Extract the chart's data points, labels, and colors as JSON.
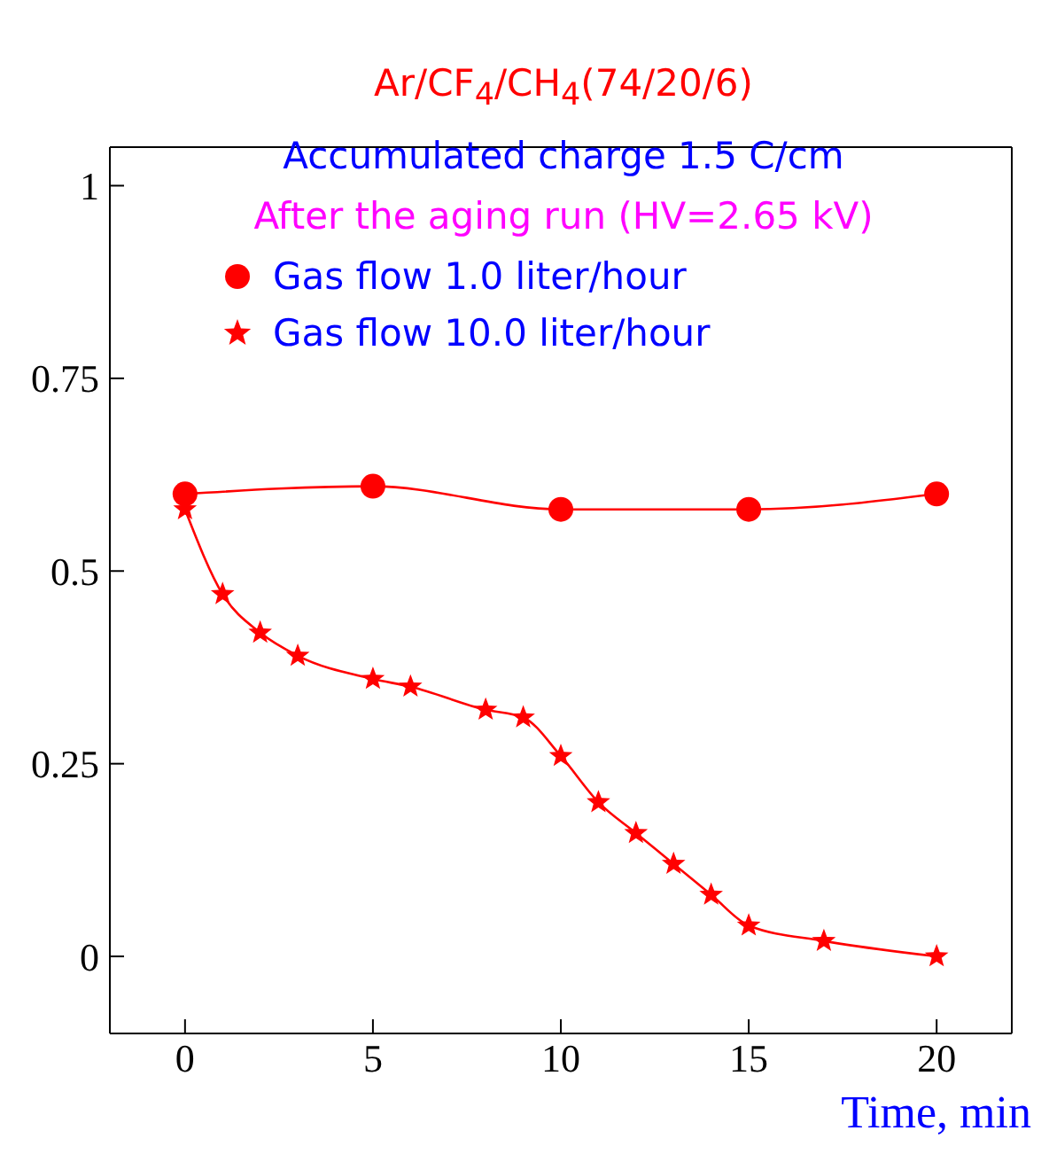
{
  "chart_data": {
    "type": "line",
    "xlabel": "Time, min",
    "annotations": [
      "Ar/CF$_{4}$/CH$_{4}$(74/20/6)",
      "Accumulated charge 1.5 C/cm",
      "After the aging run (HV=2.65 kV)"
    ],
    "series": [
      {
        "name": "Gas flow 1.0 liter/hour",
        "color": "#ff0000",
        "marker": "circle",
        "x": [
          0,
          5,
          10,
          15,
          20
        ],
        "values": [
          0.6,
          0.61,
          0.58,
          0.58,
          0.6
        ]
      },
      {
        "name": "Gas flow 10.0 liter/hour",
        "color": "#ff0000",
        "marker": "star",
        "x": [
          0,
          1,
          2,
          3,
          5,
          6,
          8,
          9,
          10,
          11,
          12,
          13,
          14,
          15,
          17,
          20
        ],
        "values": [
          0.58,
          0.47,
          0.42,
          0.39,
          0.36,
          0.35,
          0.32,
          0.31,
          0.26,
          0.2,
          0.16,
          0.12,
          0.08,
          0.04,
          0.02,
          0
        ]
      }
    ],
    "xlim": [
      -2,
      22
    ],
    "xticks": [
      0,
      5,
      10,
      15,
      20
    ],
    "ylim": [
      -0.1,
      1.05
    ],
    "yticks": [
      0,
      0.25,
      0.5,
      0.75,
      1
    ],
    "grid": false,
    "legend": "top"
  }
}
